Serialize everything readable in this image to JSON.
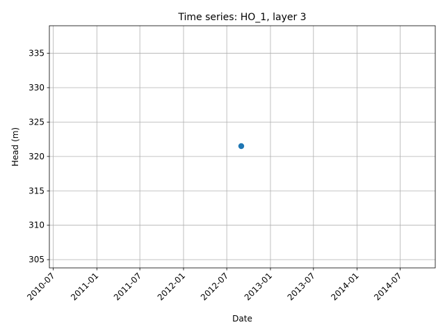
{
  "chart_data": {
    "type": "scatter",
    "title": "Time series: HO_1, layer 3",
    "xlabel": "Date",
    "ylabel": "Head (m)",
    "x_type": "date",
    "xlim": [
      "2010-06-15",
      "2014-11-26"
    ],
    "ylim": [
      303.8,
      339.0
    ],
    "x_ticks": [
      "2010-07",
      "2011-01",
      "2011-07",
      "2012-01",
      "2012-07",
      "2013-01",
      "2013-07",
      "2014-01",
      "2014-07"
    ],
    "y_ticks": [
      305,
      310,
      315,
      320,
      325,
      330,
      335
    ],
    "grid": true,
    "marker_color": "#1f77b4",
    "points": [
      {
        "x": "2012-08-31",
        "y": 321.5
      }
    ]
  }
}
